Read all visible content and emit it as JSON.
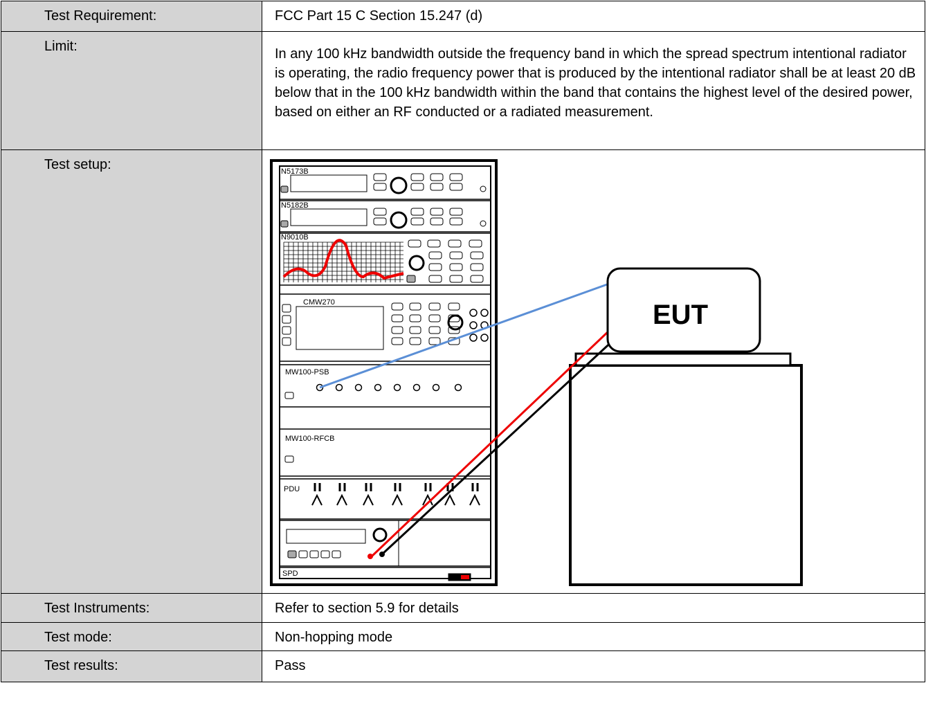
{
  "table": {
    "rows": [
      [
        "Test Requirement:",
        "FCC Part 15 C Section 15.247 (d)"
      ],
      [
        "Limit:",
        "In any 100 kHz bandwidth outside the frequency band in which the spread spectrum intentional radiator is operating, the radio frequency power that is produced by the intentional radiator shall be at least 20 dB below that in the 100 kHz bandwidth within the band that contains the highest level of the desired power, based on either an RF conducted or a radiated measurement."
      ],
      [
        "Test setup:"
      ],
      [
        "Test Instruments:",
        "Refer to section 5.9 for details"
      ],
      [
        "Test mode:",
        "Non-hopping mode"
      ],
      [
        "Test results:",
        "Pass"
      ]
    ]
  },
  "diagram": {
    "instruments": [
      "N5173B",
      "N5182B",
      "N9010B",
      "CMW270",
      "MW100-PSB",
      "MW100-RFCB",
      "PDU",
      "SPD"
    ],
    "eut": "EUT"
  }
}
